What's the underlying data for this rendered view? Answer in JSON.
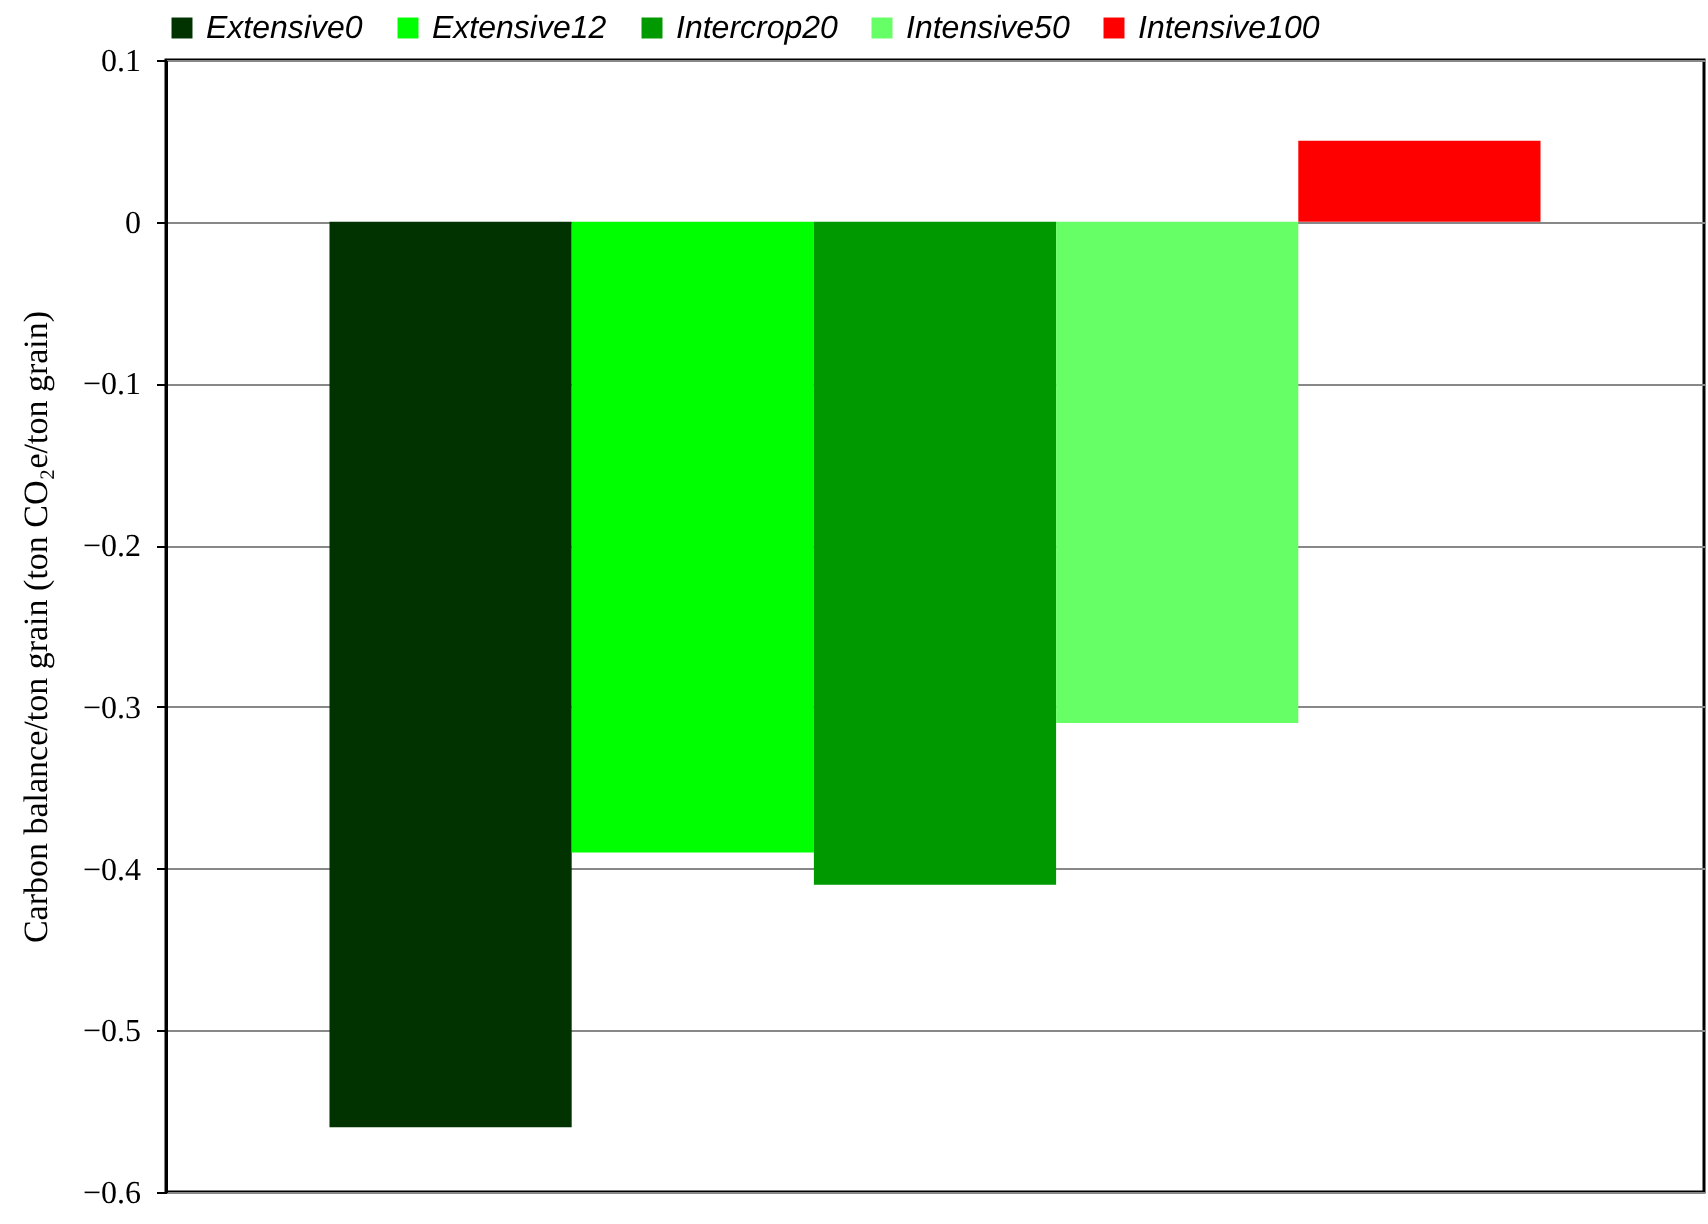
{
  "chart_data": {
    "type": "bar",
    "ylabel": "Carbon  balance/ton grain (ton CO₂e/ton grain)",
    "categories": [
      null
    ],
    "series": [
      {
        "name": "Extensive0",
        "color": "#003300",
        "values": [
          -0.56
        ]
      },
      {
        "name": "Extensive12",
        "color": "#00ff00",
        "values": [
          -0.39
        ]
      },
      {
        "name": "Intercrop20",
        "color": "#009900",
        "values": [
          -0.41
        ]
      },
      {
        "name": "Intensive50",
        "color": "#66ff66",
        "values": [
          -0.31
        ]
      },
      {
        "name": "Intensive100",
        "color": "#ff0000",
        "values": [
          0.05
        ]
      }
    ],
    "ylim": [
      -0.6,
      0.1
    ],
    "yticks": [
      -0.6,
      -0.5,
      -0.4,
      -0.3,
      -0.2,
      -0.1,
      0,
      0.1
    ],
    "grid": "y",
    "legend": "top",
    "tick_labels": "y"
  }
}
